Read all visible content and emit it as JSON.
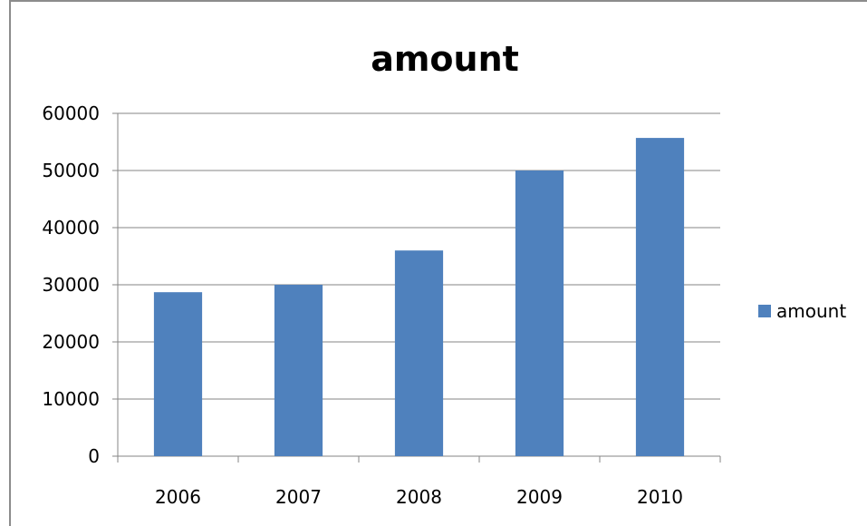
{
  "chart_data": {
    "type": "bar",
    "title": "amount",
    "xlabel": "",
    "ylabel": "",
    "categories": [
      "2006",
      "2007",
      "2008",
      "2009",
      "2010"
    ],
    "series": [
      {
        "name": "amount",
        "values": [
          28700,
          30000,
          36000,
          50000,
          55700
        ],
        "color": "#4f81bd"
      }
    ],
    "ylim": [
      0,
      60000
    ],
    "yticks": [
      "0",
      "10000",
      "20000",
      "30000",
      "40000",
      "50000",
      "60000"
    ],
    "grid": true,
    "legend": {
      "position": "right",
      "label": "amount"
    }
  }
}
